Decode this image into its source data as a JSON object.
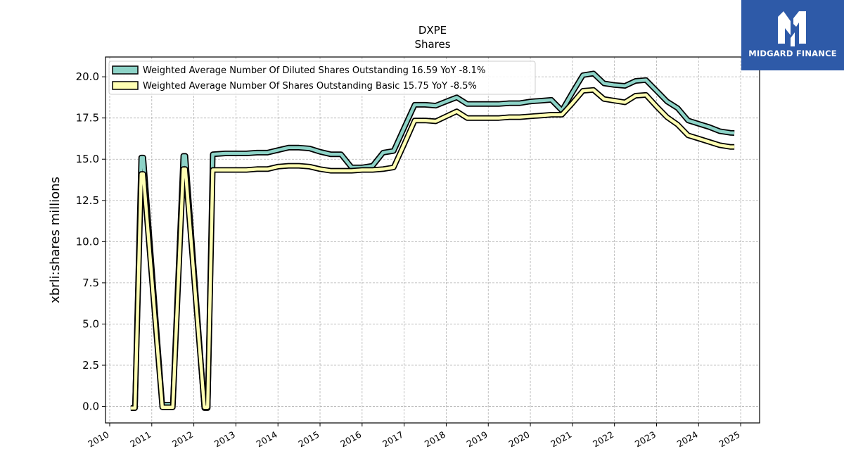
{
  "logo": {
    "text": "MIDGARD FINANCE",
    "icon": "midgard-m-logo-icon",
    "background": "#2e5aa8"
  },
  "chart_data": {
    "type": "line",
    "title": "DXPE",
    "subtitle": "Shares",
    "xlabel": "",
    "ylabel": "xbrli:shares millions",
    "xlim": [
      2009.9,
      2025.45
    ],
    "ylim": [
      -1.0,
      21.2
    ],
    "xticks": [
      "2010",
      "2011",
      "2012",
      "2013",
      "2014",
      "2015",
      "2016",
      "2017",
      "2018",
      "2019",
      "2020",
      "2021",
      "2022",
      "2023",
      "2024",
      "2025"
    ],
    "yticks": [
      "0.0",
      "2.5",
      "5.0",
      "7.5",
      "10.0",
      "12.5",
      "15.0",
      "17.5",
      "20.0"
    ],
    "grid": true,
    "legend_position": "top-left",
    "series": [
      {
        "name": "Weighted Average Number Of Diluted Shares Outstanding",
        "legend_label": "Weighted Average Number Of Diluted Shares Outstanding  16.59 YoY -8.1%",
        "color": "#8dd3c7",
        "x": [
          2010.5,
          2010.6,
          2010.75,
          2010.8,
          2011.25,
          2011.35,
          2011.5,
          2011.75,
          2011.8,
          2012.25,
          2012.33,
          2012.45,
          2012.75,
          2013.0,
          2013.25,
          2013.5,
          2013.75,
          2014.0,
          2014.25,
          2014.5,
          2014.75,
          2015.0,
          2015.25,
          2015.5,
          2015.75,
          2016.0,
          2016.25,
          2016.5,
          2016.75,
          2017.0,
          2017.25,
          2017.5,
          2017.75,
          2018.0,
          2018.25,
          2018.5,
          2018.75,
          2019.0,
          2019.25,
          2019.5,
          2019.75,
          2020.0,
          2020.25,
          2020.5,
          2020.75,
          2021.0,
          2021.25,
          2021.5,
          2021.75,
          2022.0,
          2022.25,
          2022.5,
          2022.75,
          2023.0,
          2023.25,
          2023.5,
          2023.75,
          2024.0,
          2024.25,
          2024.5,
          2024.75,
          2024.85
        ],
        "y": [
          -0.1,
          -0.1,
          15.1,
          15.1,
          0.1,
          0.1,
          0.1,
          15.2,
          15.2,
          -0.1,
          -0.1,
          15.3,
          15.35,
          15.35,
          15.35,
          15.4,
          15.4,
          15.55,
          15.7,
          15.7,
          15.65,
          15.45,
          15.3,
          15.3,
          14.5,
          14.5,
          14.6,
          15.4,
          15.5,
          16.9,
          18.3,
          18.3,
          18.25,
          18.5,
          18.75,
          18.35,
          18.35,
          18.35,
          18.35,
          18.4,
          18.4,
          18.5,
          18.55,
          18.6,
          17.95,
          19.05,
          20.1,
          20.2,
          19.6,
          19.5,
          19.45,
          19.75,
          19.8,
          19.15,
          18.5,
          18.1,
          17.35,
          17.15,
          16.95,
          16.7,
          16.6,
          16.59
        ]
      },
      {
        "name": "Weighted Average Number Of Shares Outstanding Basic",
        "legend_label": "Weighted Average Number Of Shares Outstanding Basic  15.75 YoY -8.5%",
        "color": "#ffffb3",
        "x": [
          2010.5,
          2010.6,
          2010.75,
          2010.8,
          2011.25,
          2011.35,
          2011.5,
          2011.75,
          2011.8,
          2012.25,
          2012.33,
          2012.45,
          2012.75,
          2013.0,
          2013.25,
          2013.5,
          2013.75,
          2014.0,
          2014.25,
          2014.5,
          2014.75,
          2015.0,
          2015.25,
          2015.5,
          2015.75,
          2016.0,
          2016.25,
          2016.5,
          2016.75,
          2017.0,
          2017.25,
          2017.5,
          2017.75,
          2018.0,
          2018.25,
          2018.5,
          2018.75,
          2019.0,
          2019.25,
          2019.5,
          2019.75,
          2020.0,
          2020.25,
          2020.5,
          2020.75,
          2021.0,
          2021.25,
          2021.5,
          2021.75,
          2022.0,
          2022.25,
          2022.5,
          2022.75,
          2023.0,
          2023.25,
          2023.5,
          2023.75,
          2024.0,
          2024.25,
          2024.5,
          2024.75,
          2024.85
        ],
        "y": [
          -0.1,
          -0.1,
          14.1,
          14.1,
          -0.05,
          -0.05,
          -0.05,
          14.4,
          14.4,
          -0.05,
          -0.05,
          14.35,
          14.35,
          14.35,
          14.35,
          14.4,
          14.4,
          14.55,
          14.6,
          14.6,
          14.55,
          14.4,
          14.3,
          14.3,
          14.3,
          14.35,
          14.35,
          14.4,
          14.5,
          15.9,
          17.35,
          17.35,
          17.3,
          17.6,
          17.9,
          17.5,
          17.5,
          17.5,
          17.5,
          17.55,
          17.55,
          17.6,
          17.65,
          17.7,
          17.7,
          18.4,
          19.15,
          19.2,
          18.65,
          18.55,
          18.45,
          18.85,
          18.9,
          18.2,
          17.55,
          17.1,
          16.45,
          16.25,
          16.05,
          15.85,
          15.75,
          15.75
        ]
      }
    ]
  }
}
